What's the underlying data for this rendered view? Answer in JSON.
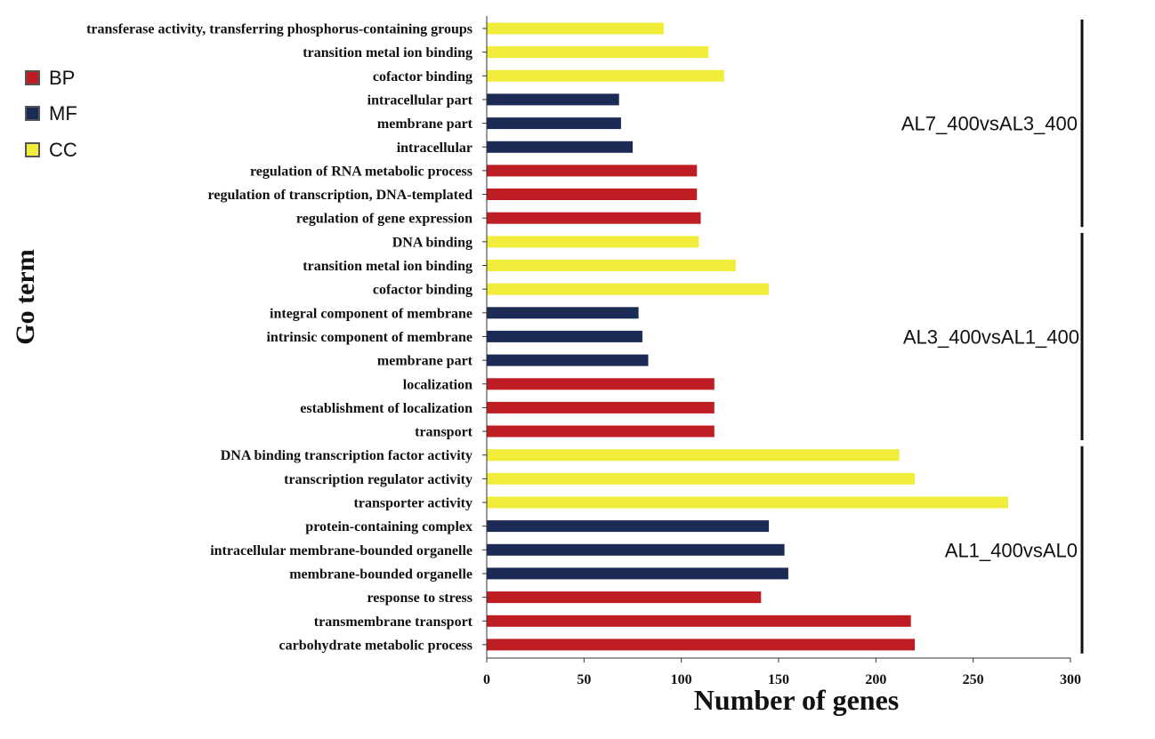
{
  "chart_data": {
    "type": "bar",
    "orientation": "horizontal",
    "xlabel": "Number of genes",
    "ylabel": "Go term",
    "xlim": [
      0,
      300
    ],
    "xticks": [
      0,
      50,
      100,
      150,
      200,
      250,
      300
    ],
    "grid": false,
    "legend_position": "top-left",
    "legend": [
      {
        "key": "BP",
        "label": "BP",
        "color": "#be1e23"
      },
      {
        "key": "MF",
        "label": "MF",
        "color": "#1c2b55"
      },
      {
        "key": "CC",
        "label": "CC",
        "color": "#f2ec3a"
      }
    ],
    "groups": [
      {
        "label": "AL7_400vsAL3_400",
        "from": 0,
        "to": 8
      },
      {
        "label": "AL3_400vsAL1_400",
        "from": 9,
        "to": 17
      },
      {
        "label": "AL1_400vsAL0",
        "from": 18,
        "to": 26
      }
    ],
    "bars": [
      {
        "term": "transferase activity, transferring phosphorus-containing groups",
        "value": 91,
        "category": "CC"
      },
      {
        "term": "transition metal ion binding",
        "value": 114,
        "category": "CC"
      },
      {
        "term": "cofactor binding",
        "value": 122,
        "category": "CC"
      },
      {
        "term": "intracellular part",
        "value": 68,
        "category": "MF"
      },
      {
        "term": "membrane part",
        "value": 69,
        "category": "MF"
      },
      {
        "term": "intracellular",
        "value": 75,
        "category": "MF"
      },
      {
        "term": "regulation of RNA metabolic process",
        "value": 108,
        "category": "BP"
      },
      {
        "term": "regulation of transcription, DNA-templated",
        "value": 108,
        "category": "BP"
      },
      {
        "term": "regulation of gene expression",
        "value": 110,
        "category": "BP"
      },
      {
        "term": "DNA binding",
        "value": 109,
        "category": "CC"
      },
      {
        "term": "transition metal ion binding",
        "value": 128,
        "category": "CC"
      },
      {
        "term": "cofactor binding",
        "value": 145,
        "category": "CC"
      },
      {
        "term": "integral component of membrane",
        "value": 78,
        "category": "MF"
      },
      {
        "term": "intrinsic component of membrane",
        "value": 80,
        "category": "MF"
      },
      {
        "term": "membrane part",
        "value": 83,
        "category": "MF"
      },
      {
        "term": "localization",
        "value": 117,
        "category": "BP"
      },
      {
        "term": "establishment of localization",
        "value": 117,
        "category": "BP"
      },
      {
        "term": "transport",
        "value": 117,
        "category": "BP"
      },
      {
        "term": "DNA binding transcription factor activity",
        "value": 212,
        "category": "CC"
      },
      {
        "term": "transcription regulator activity",
        "value": 220,
        "category": "CC"
      },
      {
        "term": "transporter activity",
        "value": 268,
        "category": "CC"
      },
      {
        "term": "protein-containing complex",
        "value": 145,
        "category": "MF"
      },
      {
        "term": "intracellular membrane-bounded organelle",
        "value": 153,
        "category": "MF"
      },
      {
        "term": "membrane-bounded organelle",
        "value": 155,
        "category": "MF"
      },
      {
        "term": "response to stress",
        "value": 141,
        "category": "BP"
      },
      {
        "term": "transmembrane transport",
        "value": 218,
        "category": "BP"
      },
      {
        "term": "carbohydrate metabolic process",
        "value": 220,
        "category": "BP"
      }
    ]
  }
}
